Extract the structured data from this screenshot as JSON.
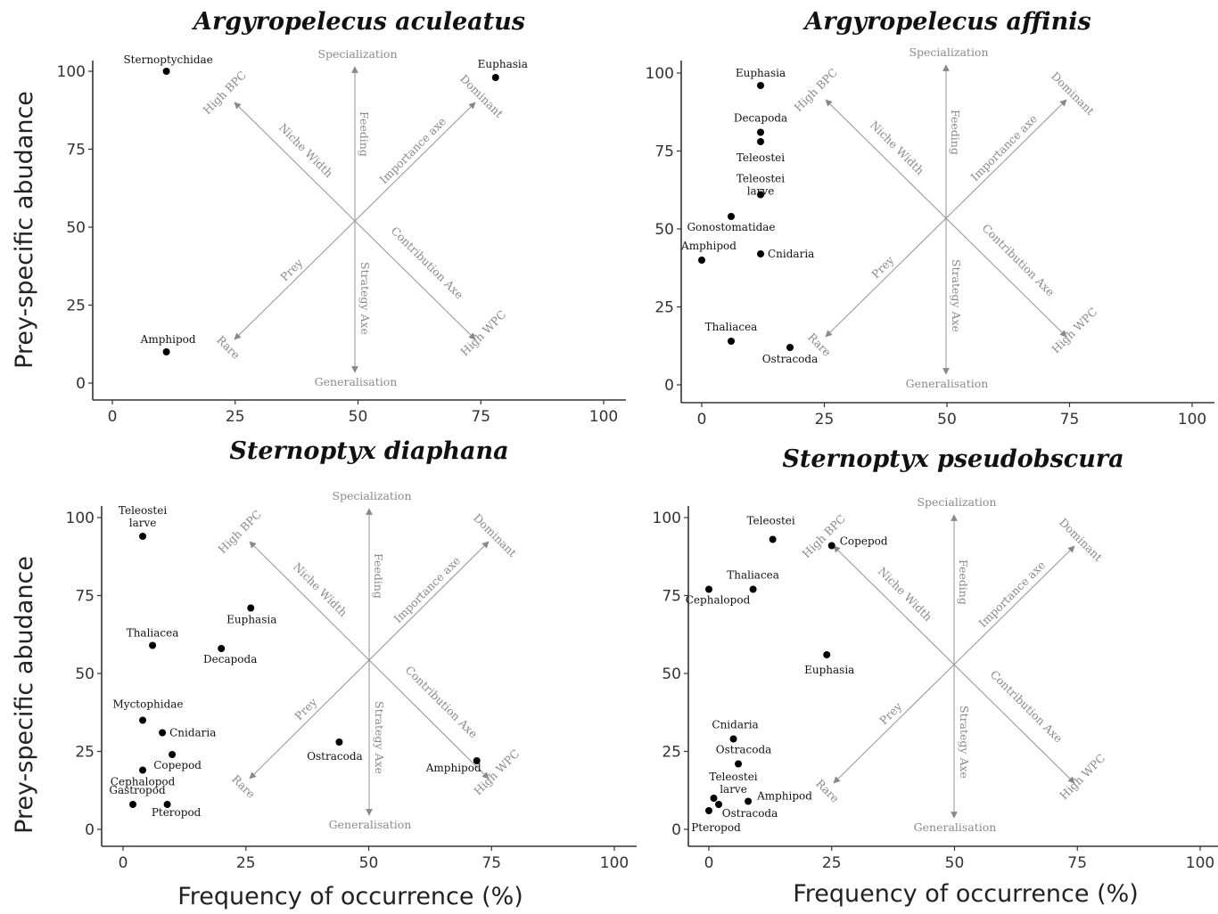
{
  "x_axis_title": "Frequency of occurrence (%)",
  "y_axis_title": "Prey-specific abudance",
  "guide_labels": {
    "specialization": "Specialization",
    "generalisation": "Generalisation",
    "feeding": "Feeding",
    "strategy_axe": "Strategy Axe",
    "niche_width": "Niche Width",
    "contribution_axe": "Contribution Axe",
    "importance_axe": "Importance axe",
    "prey": "Prey",
    "high_bpc": "High BPC",
    "high_wpc": "High WPC",
    "dominant": "Dominant",
    "rare": "Rare"
  },
  "chart_data": [
    {
      "type": "scatter",
      "title": "Argyropelecus aculeatus",
      "xlabel": "",
      "ylabel": "Prey-specific abudance",
      "xlim": [
        0,
        100
      ],
      "ylim": [
        0,
        100
      ],
      "xticks": [
        0,
        25,
        50,
        75,
        100
      ],
      "yticks": [
        0,
        25,
        50,
        75,
        100
      ],
      "grid": false,
      "points": [
        {
          "label": "Sternoptychidae",
          "x": 11,
          "y": 100
        },
        {
          "label": "Euphasia",
          "x": 78,
          "y": 98
        },
        {
          "label": "Amphipod",
          "x": 11,
          "y": 10
        }
      ]
    },
    {
      "type": "scatter",
      "title": "Argyropelecus affinis",
      "xlabel": "",
      "ylabel": "",
      "xlim": [
        0,
        100
      ],
      "ylim": [
        0,
        100
      ],
      "xticks": [
        0,
        25,
        50,
        75,
        100
      ],
      "yticks": [
        0,
        25,
        50,
        75,
        100
      ],
      "grid": false,
      "points": [
        {
          "label": "Euphasia",
          "x": 12,
          "y": 96
        },
        {
          "label": "Decapoda",
          "x": 12,
          "y": 81
        },
        {
          "label": "Teleostei",
          "x": 12,
          "y": 78
        },
        {
          "label": "Teleostei larve",
          "x": 12,
          "y": 61
        },
        {
          "label": "Gonostomatidae",
          "x": 6,
          "y": 54
        },
        {
          "label": "Amphipod",
          "x": 0,
          "y": 40
        },
        {
          "label": "Cnidaria",
          "x": 12,
          "y": 42
        },
        {
          "label": "Thaliacea",
          "x": 6,
          "y": 14
        },
        {
          "label": "Ostracoda",
          "x": 18,
          "y": 12
        }
      ]
    },
    {
      "type": "scatter",
      "title": "Sternoptyx diaphana",
      "xlabel": "Frequency of occurrence (%)",
      "ylabel": "Prey-specific abudance",
      "xlim": [
        0,
        100
      ],
      "ylim": [
        0,
        100
      ],
      "xticks": [
        0,
        25,
        50,
        75,
        100
      ],
      "yticks": [
        0,
        25,
        50,
        75,
        100
      ],
      "grid": false,
      "points": [
        {
          "label": "Teleostei larve",
          "x": 4,
          "y": 94
        },
        {
          "label": "Euphasia",
          "x": 26,
          "y": 71
        },
        {
          "label": "Thaliacea",
          "x": 6,
          "y": 59
        },
        {
          "label": "Decapoda",
          "x": 20,
          "y": 58
        },
        {
          "label": "Myctophidae",
          "x": 4,
          "y": 35
        },
        {
          "label": "Cnidaria",
          "x": 8,
          "y": 31
        },
        {
          "label": "Copepod",
          "x": 10,
          "y": 24
        },
        {
          "label": "Cephalopod",
          "x": 4,
          "y": 19
        },
        {
          "label": "Gastropod",
          "x": 2,
          "y": 8
        },
        {
          "label": "Pteropod",
          "x": 9,
          "y": 8
        },
        {
          "label": "Ostracoda",
          "x": 44,
          "y": 28
        },
        {
          "label": "Amphipod",
          "x": 72,
          "y": 22
        }
      ]
    },
    {
      "type": "scatter",
      "title": "Sternoptyx pseudobscura",
      "xlabel": "Frequency of occurrence (%)",
      "ylabel": "",
      "xlim": [
        0,
        100
      ],
      "ylim": [
        0,
        100
      ],
      "xticks": [
        0,
        25,
        50,
        75,
        100
      ],
      "yticks": [
        0,
        25,
        50,
        75,
        100
      ],
      "grid": false,
      "points": [
        {
          "label": "Teleostei",
          "x": 13,
          "y": 93
        },
        {
          "label": "Copepod",
          "x": 25,
          "y": 91
        },
        {
          "label": "Thaliacea",
          "x": 9,
          "y": 77
        },
        {
          "label": "Cephalopod",
          "x": 0,
          "y": 77
        },
        {
          "label": "Euphasia",
          "x": 24,
          "y": 56
        },
        {
          "label": "Cnidaria",
          "x": 5,
          "y": 29
        },
        {
          "label": "Ostracoda",
          "x": 6,
          "y": 21
        },
        {
          "label": "Teleostei larve",
          "x": 1,
          "y": 10
        },
        {
          "label": "Amphipod",
          "x": 8,
          "y": 9
        },
        {
          "label": "Ostracoda",
          "x": 2,
          "y": 8
        },
        {
          "label": "Pteropod",
          "x": 0,
          "y": 6
        }
      ]
    }
  ]
}
